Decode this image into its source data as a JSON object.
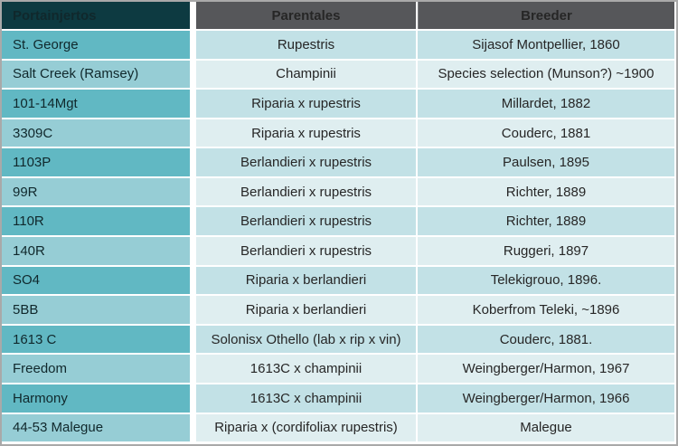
{
  "table": {
    "headers": [
      "Portainjertos",
      "Parentales",
      "Breeder"
    ],
    "rows": [
      {
        "cells": [
          "St. George",
          "Rupestris",
          "Sijasof Montpellier, 1860"
        ]
      },
      {
        "cells": [
          "Salt Creek (Ramsey)",
          "Champinii",
          "Species selection (Munson?) ~1900"
        ]
      },
      {
        "cells": [
          "101-14Mgt",
          "Riparia x rupestris",
          "Millardet, 1882"
        ]
      },
      {
        "cells": [
          "3309C",
          "Riparia x rupestris",
          "Couderc, 1881"
        ]
      },
      {
        "cells": [
          "1103P",
          "Berlandieri x rupestris",
          "Paulsen, 1895"
        ]
      },
      {
        "cells": [
          "99R",
          "Berlandieri x rupestris",
          "Richter, 1889"
        ]
      },
      {
        "cells": [
          "110R",
          "Berlandieri x rupestris",
          "Richter, 1889"
        ]
      },
      {
        "cells": [
          "140R",
          "Berlandieri x rupestris",
          "Ruggeri, 1897"
        ]
      },
      {
        "cells": [
          "SO4",
          "Riparia x berlandieri",
          "Telekigrouo, 1896."
        ]
      },
      {
        "cells": [
          "5BB",
          "Riparia x berlandieri",
          "Koberfrom Teleki, ~1896"
        ]
      },
      {
        "cells": [
          "1613 C",
          "Solonisx Othello (lab x rip x vin)",
          "Couderc, 1881."
        ]
      },
      {
        "cells": [
          "Freedom",
          "1613C x champinii",
          "Weingberger/Harmon, 1967"
        ]
      },
      {
        "cells": [
          "Harmony",
          "1613C x champinii",
          "Weingberger/Harmon, 1966"
        ]
      },
      {
        "cells": [
          "44-53 Malegue",
          "Riparia x (cordifoliax rupestris)",
          "Malegue"
        ]
      }
    ]
  },
  "colors": {
    "header_col1_bg": "#0d3a41",
    "header_bg": "#56575a",
    "header_text": "#ffffff",
    "col1_odd_bg": "#61b8c3",
    "col1_even_bg": "#96cdd5",
    "cell_odd_bg": "#c2e1e6",
    "cell_even_bg": "#dfeef0",
    "body_text": "#262626",
    "outer_border": "#a9a9a9"
  },
  "chart_data": {
    "type": "table",
    "columns": [
      "Portainjertos",
      "Parentales",
      "Breeder"
    ],
    "rows": [
      [
        "St. George",
        "Rupestris",
        "Sijasof Montpellier, 1860"
      ],
      [
        "Salt Creek (Ramsey)",
        "Champinii",
        "Species selection (Munson?) ~1900"
      ],
      [
        "101-14Mgt",
        "Riparia x rupestris",
        "Millardet, 1882"
      ],
      [
        "3309C",
        "Riparia x rupestris",
        "Couderc, 1881"
      ],
      [
        "1103P",
        "Berlandieri x rupestris",
        "Paulsen, 1895"
      ],
      [
        "99R",
        "Berlandieri x rupestris",
        "Richter, 1889"
      ],
      [
        "110R",
        "Berlandieri x rupestris",
        "Richter, 1889"
      ],
      [
        "140R",
        "Berlandieri x rupestris",
        "Ruggeri, 1897"
      ],
      [
        "SO4",
        "Riparia x berlandieri",
        "Telekigrouo, 1896."
      ],
      [
        "5BB",
        "Riparia x berlandieri",
        "Koberfrom Teleki, ~1896"
      ],
      [
        "1613 C",
        "Solonisx Othello (lab x rip x vin)",
        "Couderc, 1881."
      ],
      [
        "Freedom",
        "1613C x champinii",
        "Weingberger/Harmon, 1967"
      ],
      [
        "Harmony",
        "1613C x champinii",
        "Weingberger/Harmon, 1966"
      ],
      [
        "44-53 Malegue",
        "Riparia x (cordifoliax rupestris)",
        "Malegue"
      ]
    ],
    "title": "",
    "notes": "Static rootstock (portainjertos) table: name, parentage, breeder/year. Alternating teal row shading; first column darker teal; dark header band."
  }
}
